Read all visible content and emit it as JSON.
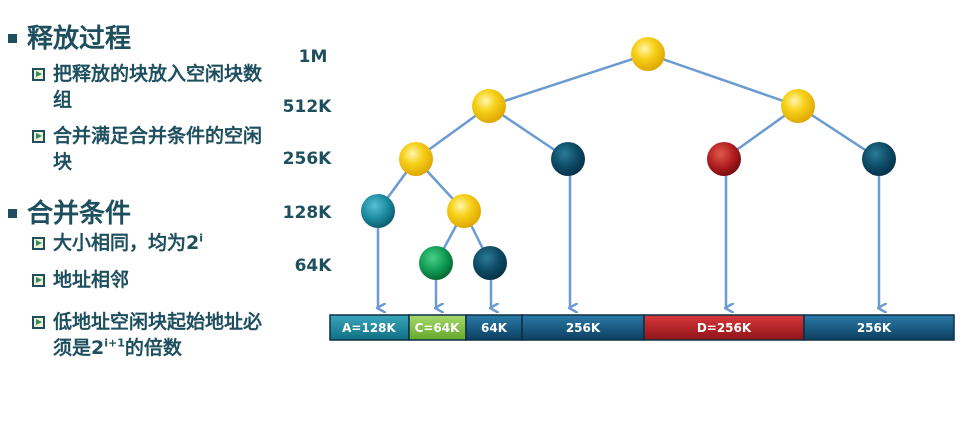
{
  "left": {
    "section1": {
      "title": "释放过程",
      "items": [
        "把释放的块放入空闲块数组",
        "合并满足合并条件的空闲块"
      ]
    },
    "section2": {
      "title": "合并条件",
      "item1_pre": "大小相同，均为2",
      "item1_sup": "i",
      "item2": "地址相邻",
      "item3_pre": "低地址空闲块起始地址必须是2",
      "item3_sup": "i+1",
      "item3_post": "的倍数"
    }
  },
  "levels": [
    "1M",
    "512K",
    "256K",
    "128K",
    "64K"
  ],
  "blocks": [
    {
      "label": "A=128K",
      "color": "#1a8aa0"
    },
    {
      "label": "C=64K",
      "color": "#7cc042"
    },
    {
      "label": "64K",
      "color": "#14506e"
    },
    {
      "label": "256K",
      "color": "#14506e"
    },
    {
      "label": "D=256K",
      "color": "#b01e28"
    },
    {
      "label": "256K",
      "color": "#14506e"
    }
  ],
  "colors": {
    "text": "#1d4f5f",
    "edge": "#6b9bd0",
    "node_yellow": "#f7c81c",
    "node_dark": "#0d4a64",
    "node_red": "#b01e20",
    "node_teal": "#1a8aa0",
    "node_green": "#0f9a52"
  }
}
